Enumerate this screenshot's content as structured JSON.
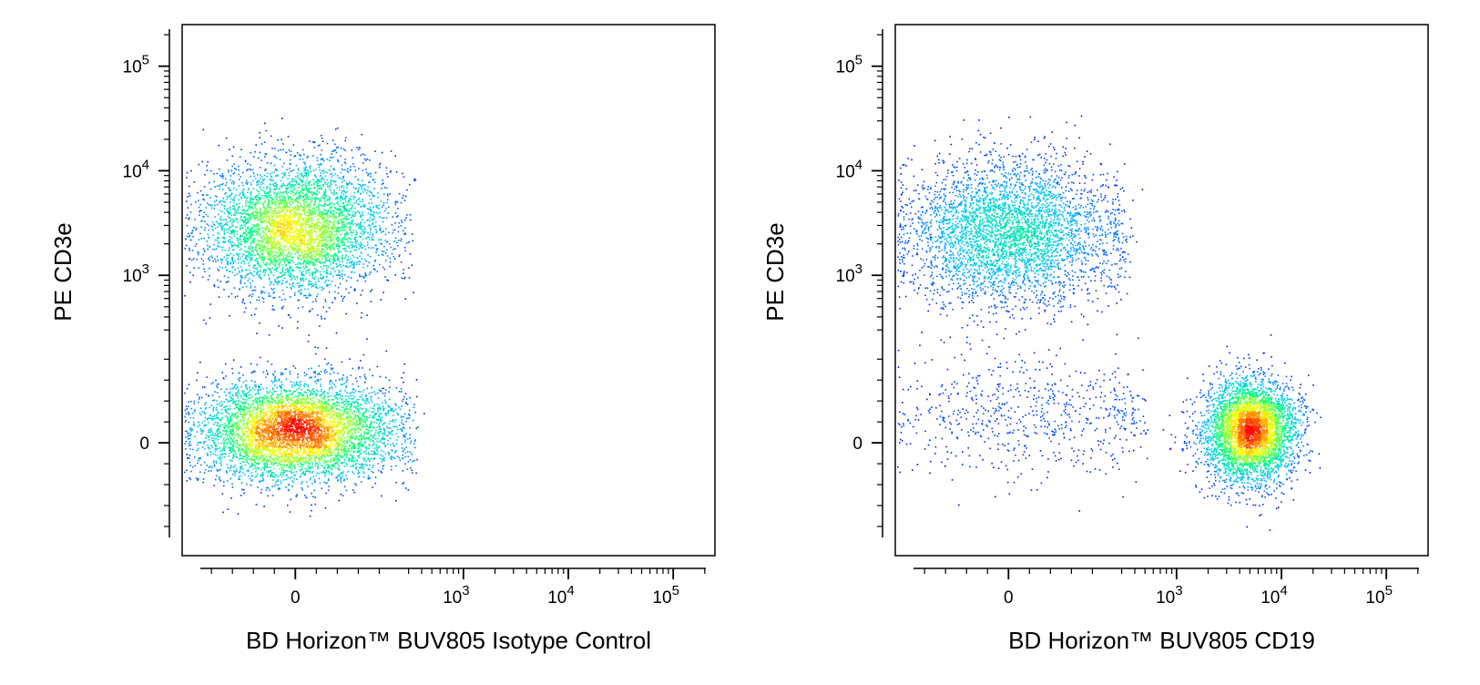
{
  "chart_data": [
    {
      "type": "scatter",
      "subtype": "flow-cytometry-density-dot-plot",
      "title": "",
      "xlabel": "BD Horizon™ BUV805 Isotype Control",
      "ylabel": "PE CD3e",
      "x_scale": "biexponential",
      "y_scale": "biexponential",
      "x_ticks": [
        {
          "value": 0,
          "base": "0",
          "exp": ""
        },
        {
          "value": 1000,
          "base": "10",
          "exp": "3"
        },
        {
          "value": 10000,
          "base": "10",
          "exp": "4"
        },
        {
          "value": 100000,
          "base": "10",
          "exp": "5"
        }
      ],
      "y_ticks": [
        {
          "value": 0,
          "base": "0",
          "exp": ""
        },
        {
          "value": 1000,
          "base": "10",
          "exp": "3"
        },
        {
          "value": 10000,
          "base": "10",
          "exp": "4"
        },
        {
          "value": 100000,
          "base": "10",
          "exp": "5"
        }
      ],
      "xlim": [
        -300,
        250000
      ],
      "ylim": [
        -300,
        250000
      ],
      "grid": false,
      "legend": "none",
      "color_scale": [
        "#0000ff",
        "#00bfff",
        "#00ff80",
        "#ffff00",
        "#ff0000"
      ],
      "populations": [
        {
          "x_center": 0,
          "y_center": 2900,
          "x_spread": 110,
          "y_spread": 0.32,
          "events": 4500
        },
        {
          "x_center": 0,
          "y_center": 30,
          "x_spread": 120,
          "y_spread": 60,
          "events": 5500
        }
      ]
    },
    {
      "type": "scatter",
      "subtype": "flow-cytometry-density-dot-plot",
      "title": "",
      "xlabel": "BD Horizon™ BUV805 CD19",
      "ylabel": "PE CD3e",
      "x_scale": "biexponential",
      "y_scale": "biexponential",
      "x_ticks": [
        {
          "value": 0,
          "base": "0",
          "exp": ""
        },
        {
          "value": 1000,
          "base": "10",
          "exp": "3"
        },
        {
          "value": 10000,
          "base": "10",
          "exp": "4"
        },
        {
          "value": 100000,
          "base": "10",
          "exp": "5"
        }
      ],
      "y_ticks": [
        {
          "value": 0,
          "base": "0",
          "exp": ""
        },
        {
          "value": 1000,
          "base": "10",
          "exp": "3"
        },
        {
          "value": 10000,
          "base": "10",
          "exp": "4"
        },
        {
          "value": 100000,
          "base": "10",
          "exp": "5"
        }
      ],
      "xlim": [
        -300,
        250000
      ],
      "ylim": [
        -300,
        250000
      ],
      "grid": false,
      "legend": "none",
      "color_scale": [
        "#0000ff",
        "#00bfff",
        "#00ff80",
        "#ffff00",
        "#ff0000"
      ],
      "populations": [
        {
          "x_center": 0,
          "y_center": 2500,
          "x_spread": 130,
          "y_spread": 0.35,
          "events": 4000
        },
        {
          "x_center": 5000,
          "y_center": 30,
          "x_spread": 0.22,
          "y_spread": 60,
          "events": 4500
        },
        {
          "x_center": 50,
          "y_center": 60,
          "x_spread": 200,
          "y_spread": 70,
          "events": 700
        }
      ]
    }
  ]
}
